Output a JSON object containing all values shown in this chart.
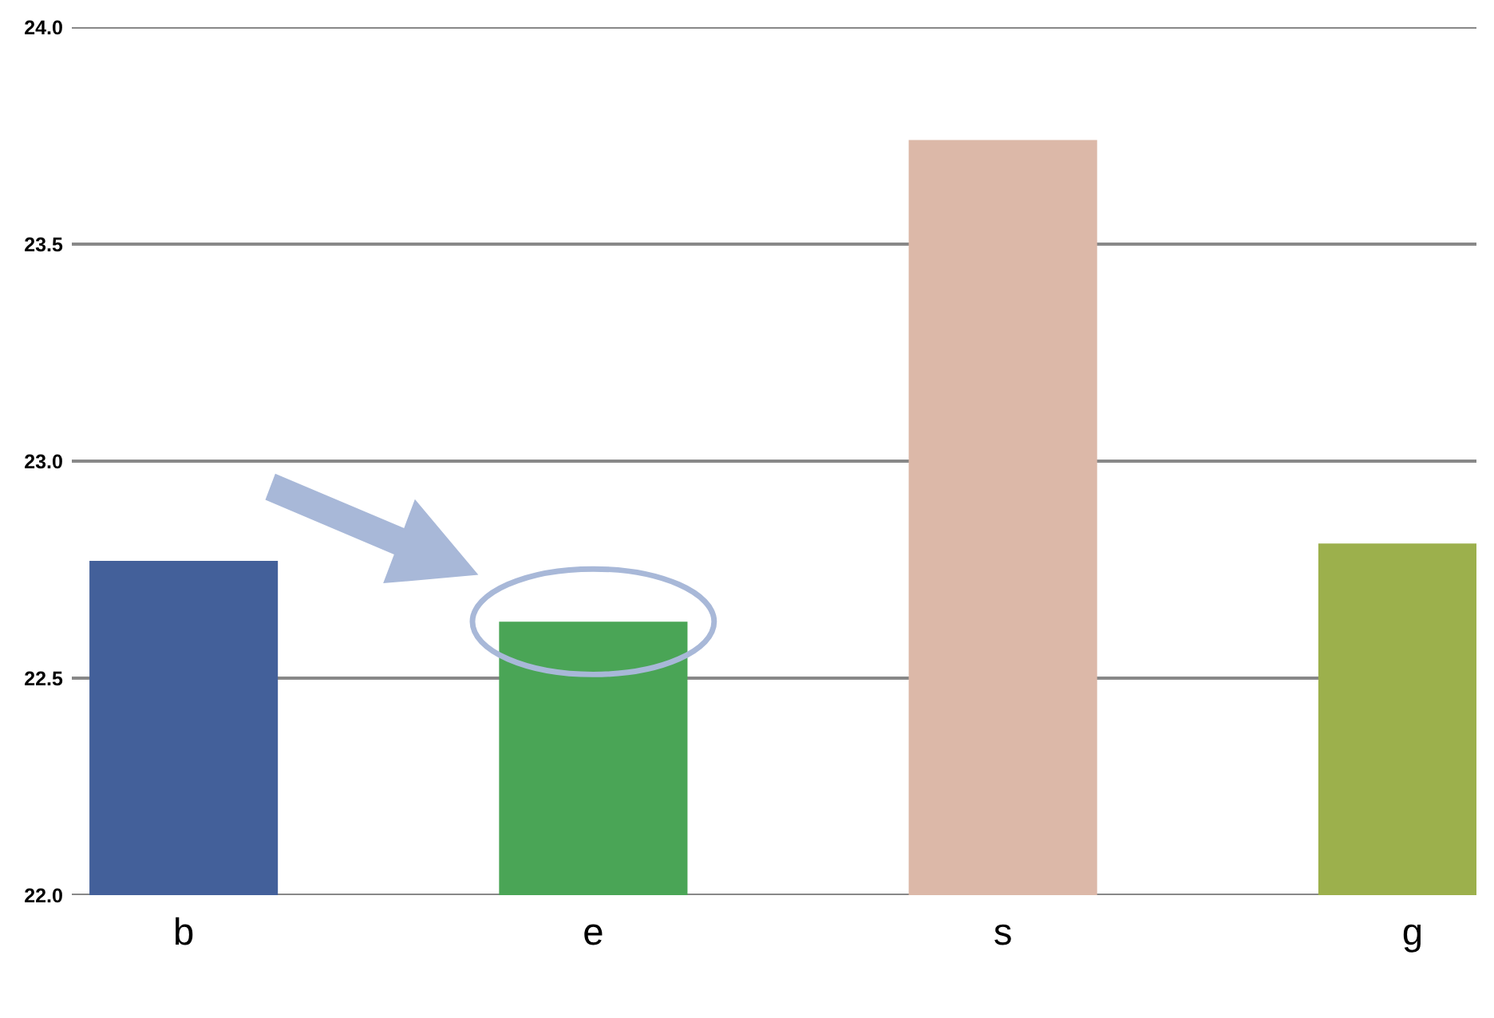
{
  "chart_data": {
    "type": "bar",
    "categories": [
      "b",
      "e",
      "s",
      "g"
    ],
    "values": [
      22.77,
      22.63,
      23.74,
      22.81
    ],
    "colors": [
      "#43609a",
      "#4aa556",
      "#dcb8a8",
      "#9cb04c"
    ],
    "ylim": [
      22.0,
      24.0
    ],
    "yticks": [
      {
        "value": 22.0,
        "label": "22.0"
      },
      {
        "value": 22.5,
        "label": "22.5"
      },
      {
        "value": 23.0,
        "label": "23.0"
      },
      {
        "value": 23.5,
        "label": "23.5"
      },
      {
        "value": 24.0,
        "label": "24.0"
      }
    ],
    "grid": "y"
  }
}
